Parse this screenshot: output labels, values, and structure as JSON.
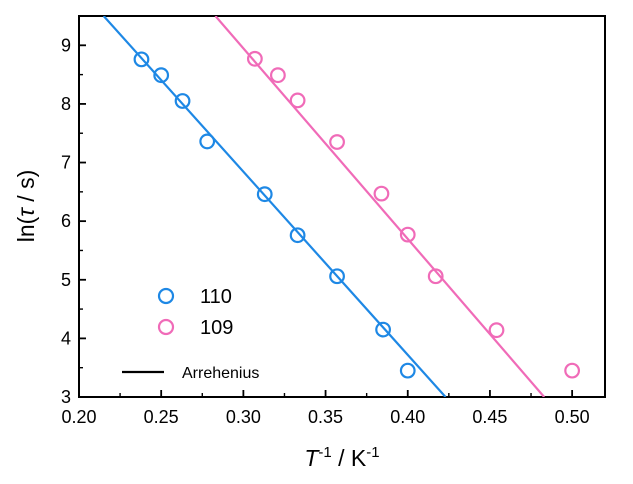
{
  "chart_data": {
    "type": "scatter",
    "title": "",
    "xlabel": "T^-1 / K^-1",
    "ylabel": "ln(τ / s)",
    "xlim": [
      0.2,
      0.52
    ],
    "ylim": [
      3.0,
      9.5
    ],
    "xticks": [
      0.2,
      0.25,
      0.3,
      0.35,
      0.4,
      0.45,
      0.5
    ],
    "yticks": [
      3,
      4,
      5,
      6,
      7,
      8,
      9
    ],
    "xtick_labels": [
      "0.20",
      "0.25",
      "0.30",
      "0.35",
      "0.40",
      "0.45",
      "0.50"
    ],
    "ytick_labels": [
      "3",
      "4",
      "5",
      "6",
      "7",
      "8",
      "9"
    ],
    "grid": false,
    "legend_position": "bottom-left",
    "series": [
      {
        "name": "110",
        "color": "#1e88e5",
        "marker": "open-circle",
        "points": [
          {
            "x": 0.238,
            "y": 8.76
          },
          {
            "x": 0.25,
            "y": 8.49
          },
          {
            "x": 0.263,
            "y": 8.05
          },
          {
            "x": 0.278,
            "y": 7.36
          },
          {
            "x": 0.313,
            "y": 6.46
          },
          {
            "x": 0.333,
            "y": 5.76
          },
          {
            "x": 0.357,
            "y": 5.06
          },
          {
            "x": 0.385,
            "y": 4.15
          },
          {
            "x": 0.4,
            "y": 3.45
          }
        ],
        "fit_line": {
          "x": [
            0.215,
            0.423
          ],
          "y": [
            9.5,
            3.0
          ]
        }
      },
      {
        "name": "109",
        "color": "#f06bb8",
        "marker": "open-circle",
        "points": [
          {
            "x": 0.307,
            "y": 8.77
          },
          {
            "x": 0.321,
            "y": 8.49
          },
          {
            "x": 0.333,
            "y": 8.06
          },
          {
            "x": 0.357,
            "y": 7.35
          },
          {
            "x": 0.384,
            "y": 6.47
          },
          {
            "x": 0.4,
            "y": 5.77
          },
          {
            "x": 0.417,
            "y": 5.06
          },
          {
            "x": 0.454,
            "y": 4.14
          },
          {
            "x": 0.5,
            "y": 3.45
          }
        ],
        "fit_line": {
          "x": [
            0.283,
            0.483
          ],
          "y": [
            9.5,
            3.0
          ]
        }
      }
    ],
    "legend": [
      {
        "label": "110",
        "marker": "open-circle",
        "color": "#1e88e5"
      },
      {
        "label": "109",
        "marker": "open-circle",
        "color": "#f06bb8"
      },
      {
        "label": "Arrehenius",
        "marker": "line",
        "color": "#000000"
      }
    ]
  }
}
